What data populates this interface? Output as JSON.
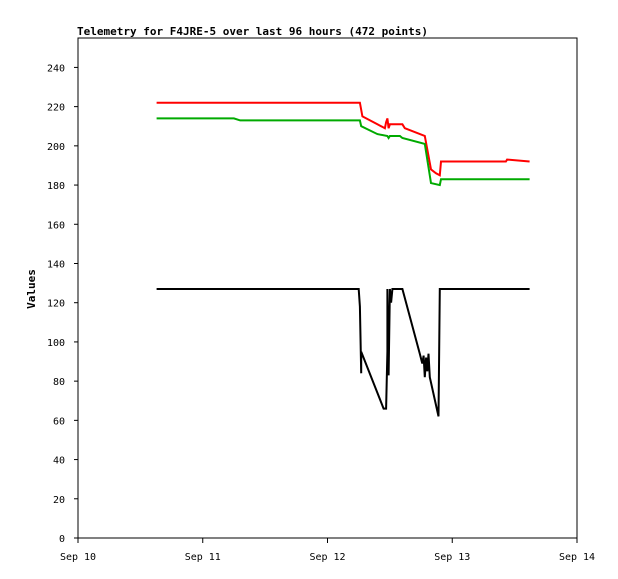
{
  "chart_data": {
    "type": "line",
    "title": "Telemetry for F4JRE-5 over last 96 hours (472 points)",
    "xlabel": "",
    "ylabel": "Values",
    "xlim": [
      0,
      4
    ],
    "ylim": [
      0,
      255
    ],
    "x_tick_labels": [
      "Sep 10",
      "Sep 11",
      "Sep 12",
      "Sep 13",
      "Sep 14"
    ],
    "x_tick_values": [
      0,
      1,
      2,
      3,
      4
    ],
    "y_ticks": [
      0,
      20,
      40,
      60,
      80,
      100,
      120,
      140,
      160,
      180,
      200,
      220,
      240
    ],
    "grid": false,
    "legend": "none",
    "series": [
      {
        "color": "#ff0000",
        "points": [
          [
            0.63,
            222
          ],
          [
            2.26,
            222
          ],
          [
            2.28,
            215
          ],
          [
            2.4,
            211
          ],
          [
            2.46,
            209
          ],
          [
            2.47,
            212
          ],
          [
            2.48,
            214
          ],
          [
            2.49,
            209
          ],
          [
            2.5,
            211
          ],
          [
            2.6,
            211
          ],
          [
            2.62,
            209
          ],
          [
            2.78,
            205
          ],
          [
            2.83,
            188
          ],
          [
            2.87,
            186
          ],
          [
            2.9,
            185
          ],
          [
            2.91,
            192
          ],
          [
            3.43,
            192
          ],
          [
            3.44,
            193
          ],
          [
            3.62,
            192
          ]
        ]
      },
      {
        "color": "#00aa00",
        "points": [
          [
            0.63,
            214
          ],
          [
            1.25,
            214
          ],
          [
            1.3,
            213
          ],
          [
            2.26,
            213
          ],
          [
            2.27,
            210
          ],
          [
            2.4,
            206
          ],
          [
            2.48,
            205
          ],
          [
            2.49,
            204
          ],
          [
            2.5,
            205
          ],
          [
            2.58,
            205
          ],
          [
            2.6,
            204
          ],
          [
            2.78,
            201
          ],
          [
            2.83,
            181
          ],
          [
            2.9,
            180
          ],
          [
            2.91,
            183
          ],
          [
            3.62,
            183
          ]
        ]
      },
      {
        "color": "#000000",
        "points": [
          [
            0.63,
            127
          ],
          [
            2.25,
            127
          ],
          [
            2.26,
            118
          ],
          [
            2.27,
            84
          ],
          [
            2.27,
            95
          ],
          [
            2.45,
            66
          ],
          [
            2.47,
            66
          ],
          [
            2.48,
            95
          ],
          [
            2.48,
            127
          ],
          [
            2.49,
            83
          ],
          [
            2.5,
            127
          ],
          [
            2.51,
            120
          ],
          [
            2.52,
            127
          ],
          [
            2.6,
            127
          ],
          [
            2.74,
            94
          ],
          [
            2.76,
            89
          ],
          [
            2.77,
            93
          ],
          [
            2.78,
            82
          ],
          [
            2.79,
            92
          ],
          [
            2.8,
            85
          ],
          [
            2.81,
            94
          ],
          [
            2.82,
            82
          ],
          [
            2.89,
            62
          ],
          [
            2.9,
            127
          ],
          [
            3.62,
            127
          ]
        ]
      }
    ]
  }
}
